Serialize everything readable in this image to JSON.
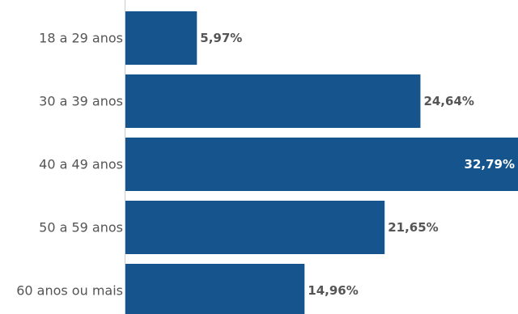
{
  "chart_data": {
    "type": "bar",
    "orientation": "horizontal",
    "categories": [
      "18 a 29 anos",
      "30 a 39 anos",
      "40 a 49 anos",
      "50 a 59 anos",
      "60 anos ou mais"
    ],
    "values": [
      5.97,
      24.64,
      32.79,
      21.65,
      14.96
    ],
    "value_labels": [
      "5,97%",
      "24,64%",
      "32,79%",
      "21,65%",
      "14,96%"
    ],
    "title": "",
    "xlabel": "",
    "ylabel": "",
    "xlim": [
      0,
      32.79
    ],
    "grid": false,
    "legend": "none",
    "colors": {
      "bar": "#15548c",
      "category_text": "#555555",
      "value_text_outside": "#555555",
      "value_text_inside": "#ffffff",
      "axis_line": "#cccccc"
    }
  }
}
